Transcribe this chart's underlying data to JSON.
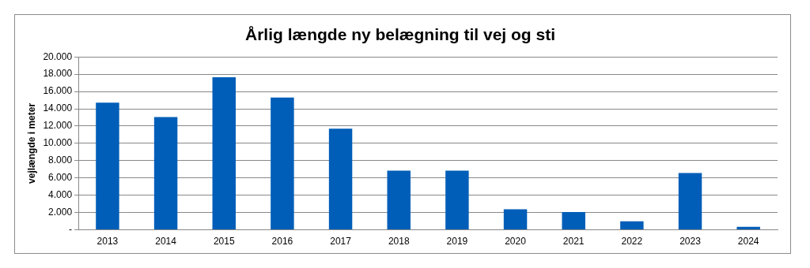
{
  "chart_data": {
    "type": "bar",
    "title": "Årlig længde ny belægning til vej og sti",
    "ylabel": "vejlængde i meter",
    "categories": [
      "2013",
      "2014",
      "2015",
      "2016",
      "2017",
      "2018",
      "2019",
      "2020",
      "2021",
      "2022",
      "2023",
      "2024"
    ],
    "values": [
      14700,
      13050,
      17650,
      15300,
      11700,
      6850,
      6850,
      2380,
      2070,
      990,
      6570,
      340
    ],
    "color": "#005eb8",
    "ylim": [
      0,
      20000
    ],
    "yticks": [
      {
        "value": 0,
        "label": "-"
      },
      {
        "value": 2000,
        "label": "2.000"
      },
      {
        "value": 4000,
        "label": "4.000"
      },
      {
        "value": 6000,
        "label": "6.000"
      },
      {
        "value": 8000,
        "label": "8.000"
      },
      {
        "value": 10000,
        "label": "10.000"
      },
      {
        "value": 12000,
        "label": "12.000"
      },
      {
        "value": 14000,
        "label": "14.000"
      },
      {
        "value": 16000,
        "label": "16.000"
      },
      {
        "value": 18000,
        "label": "18.000"
      },
      {
        "value": 20000,
        "label": "20.000"
      }
    ],
    "grid": "y",
    "legend": false
  }
}
